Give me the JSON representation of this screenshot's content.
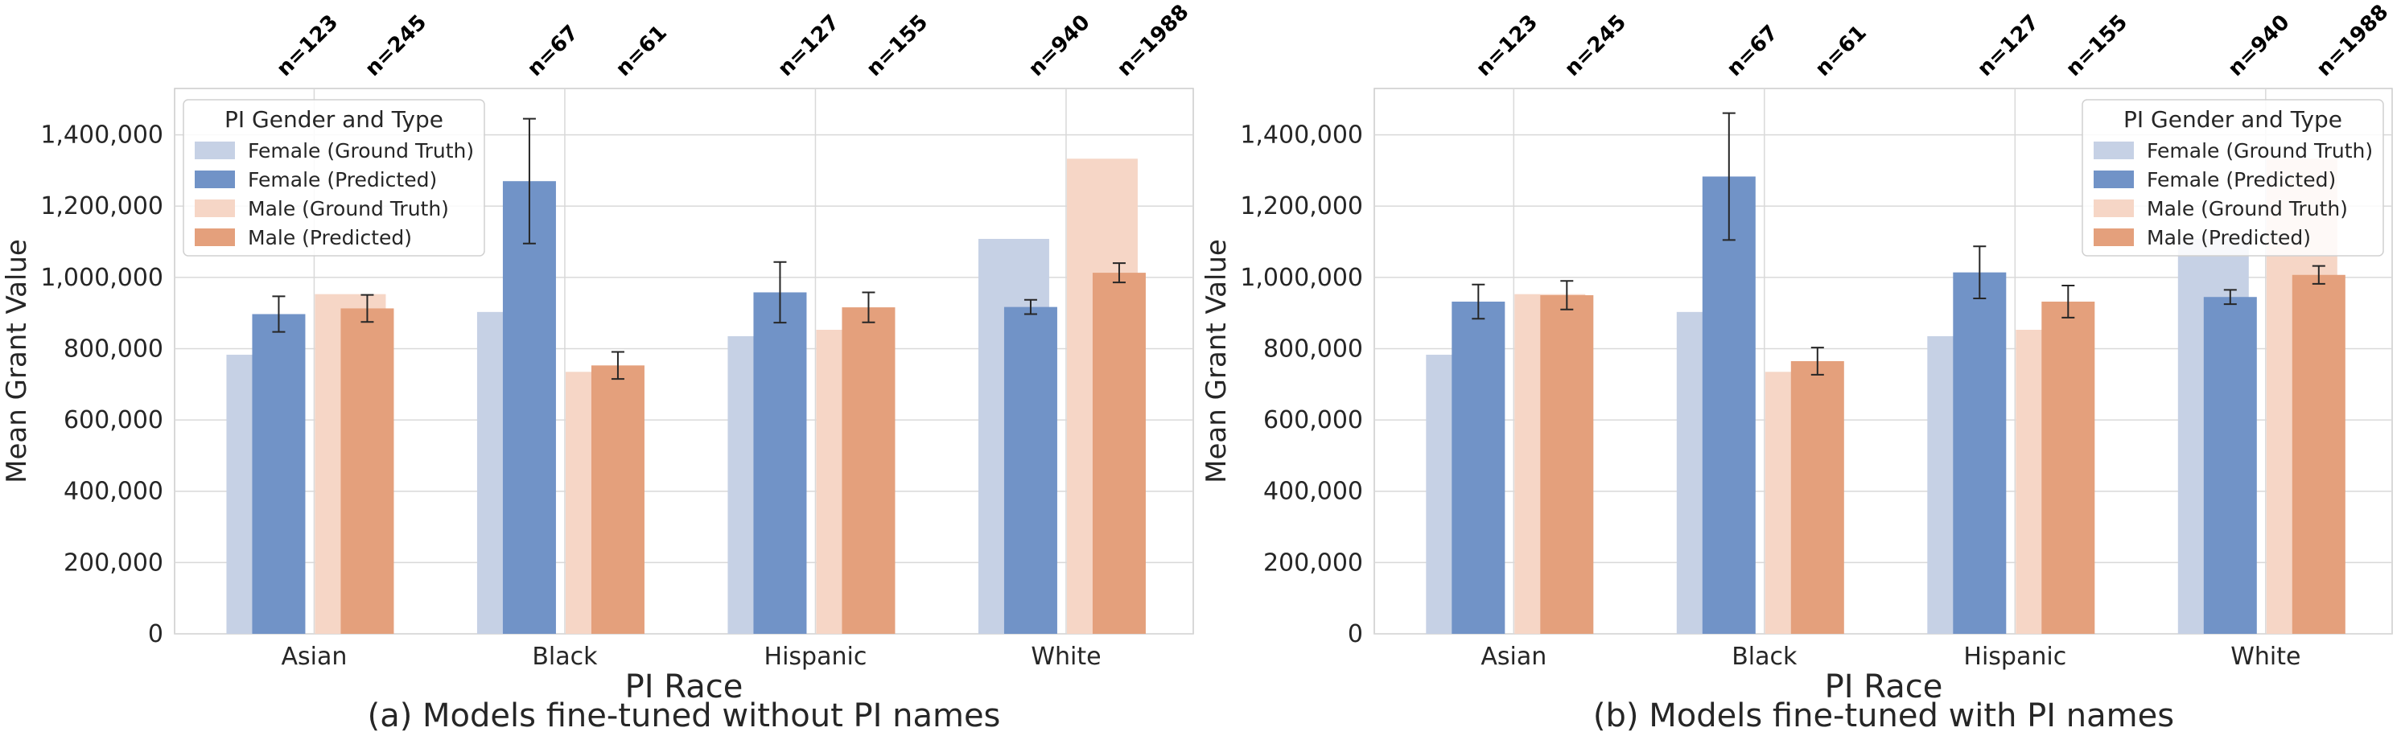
{
  "chart_data": [
    {
      "type": "bar",
      "title": "(a) Models fine-tuned without PI names",
      "xlabel": "PI Race",
      "ylabel": "Mean Grant Value",
      "categories": [
        "Asian",
        "Black",
        "Hispanic",
        "White"
      ],
      "ylim": [
        0,
        1530000
      ],
      "yticks": [
        0,
        200000,
        400000,
        600000,
        800000,
        1000000,
        1200000,
        1400000
      ],
      "ytick_labels": [
        "0",
        "200,000",
        "400,000",
        "600,000",
        "800,000",
        "1,000,000",
        "1,200,000",
        "1,400,000"
      ],
      "grid": true,
      "legend_title": "PI Gender and Type",
      "legend_position": "top-left",
      "n_labels": [
        [
          "n=123",
          "n=245"
        ],
        [
          "n=67",
          "n=61"
        ],
        [
          "n=127",
          "n=155"
        ],
        [
          "n=940",
          "n=1988"
        ]
      ],
      "series": [
        {
          "name": "Female (Ground Truth)",
          "color": "#c6d1e5",
          "values": [
            783000,
            903000,
            835000,
            1108000
          ]
        },
        {
          "name": "Female (Predicted)",
          "color": "#7193c7",
          "values": [
            897000,
            1270000,
            958000,
            917000
          ],
          "err": [
            50000,
            175000,
            85000,
            20000
          ]
        },
        {
          "name": "Male (Ground Truth)",
          "color": "#f6d6c6",
          "values": [
            953000,
            735000,
            853000,
            1333000
          ]
        },
        {
          "name": "Male (Predicted)",
          "color": "#e4a07c",
          "values": [
            913000,
            753000,
            916000,
            1013000
          ],
          "err": [
            38000,
            38000,
            42000,
            27000
          ]
        }
      ]
    },
    {
      "type": "bar",
      "title": "(b) Models fine-tuned with PI names",
      "xlabel": "PI Race",
      "ylabel": "Mean Grant Value",
      "categories": [
        "Asian",
        "Black",
        "Hispanic",
        "White"
      ],
      "ylim": [
        0,
        1530000
      ],
      "yticks": [
        0,
        200000,
        400000,
        600000,
        800000,
        1000000,
        1200000,
        1400000
      ],
      "ytick_labels": [
        "0",
        "200,000",
        "400,000",
        "600,000",
        "800,000",
        "1,000,000",
        "1,200,000",
        "1,400,000"
      ],
      "grid": true,
      "legend_title": "PI Gender and Type",
      "legend_position": "top-right",
      "n_labels": [
        [
          "n=123",
          "n=245"
        ],
        [
          "n=67",
          "n=61"
        ],
        [
          "n=127",
          "n=155"
        ],
        [
          "n=940",
          "n=1988"
        ]
      ],
      "series": [
        {
          "name": "Female (Ground Truth)",
          "color": "#c6d1e5",
          "values": [
            783000,
            903000,
            835000,
            1108000
          ]
        },
        {
          "name": "Female (Predicted)",
          "color": "#7193c7",
          "values": [
            932000,
            1283000,
            1014000,
            945000
          ],
          "err": [
            48000,
            178000,
            73000,
            20000
          ]
        },
        {
          "name": "Male (Ground Truth)",
          "color": "#f6d6c6",
          "values": [
            953000,
            735000,
            853000,
            1333000
          ]
        },
        {
          "name": "Male (Predicted)",
          "color": "#e4a07c",
          "values": [
            950000,
            765000,
            932000,
            1007000
          ],
          "err": [
            40000,
            38000,
            45000,
            25000
          ]
        }
      ]
    }
  ]
}
